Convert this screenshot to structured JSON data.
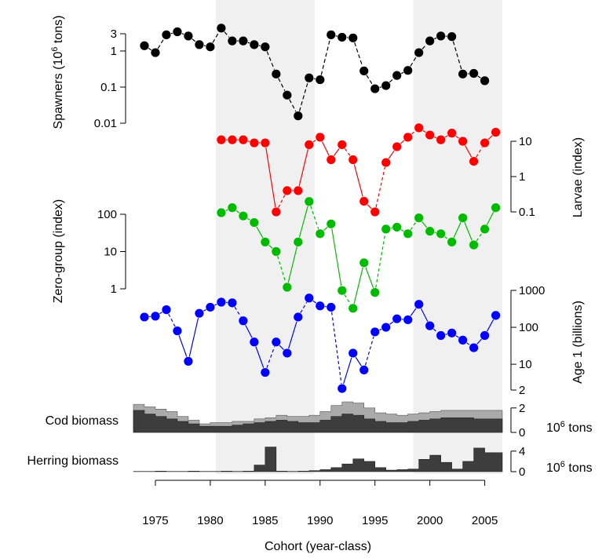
{
  "chart_data": {
    "type": "line",
    "xlabel": "Cohort (year-class)",
    "x_ticks": [
      1975,
      1980,
      1985,
      1990,
      1995,
      2000,
      2005
    ],
    "xlim": [
      1973,
      2006.6
    ],
    "shaded_periods": [
      [
        1980.5,
        1989.5
      ],
      [
        1998.5,
        2006.6
      ]
    ],
    "panels": [
      {
        "id": "spawners",
        "ylabel": "Spawners (10",
        "ylabel_sup": "6",
        "ylabel_tail": " tons)",
        "y_axis_side": "left",
        "y_scale": "log",
        "y_ticks": [
          0.01,
          0.1,
          1,
          3
        ],
        "y_tick_labels": [
          "0.01",
          "0.1",
          "1",
          "3"
        ],
        "color": "#000000",
        "x": [
          1974,
          1975,
          1976,
          1977,
          1978,
          1979,
          1980,
          1981,
          1982,
          1983,
          1984,
          1985,
          1986,
          1987,
          1988,
          1989,
          1990,
          1991,
          1992,
          1993,
          1994,
          1995,
          1996,
          1997,
          1998,
          1999,
          2000,
          2001,
          2002,
          2003,
          2004,
          2005,
          2006
        ],
        "values": [
          1.4,
          0.9,
          2.8,
          3.4,
          2.6,
          1.5,
          1.3,
          4.3,
          1.9,
          1.9,
          1.5,
          1.3,
          0.23,
          0.06,
          0.016,
          0.18,
          0.16,
          2.8,
          2.4,
          2.3,
          0.28,
          0.09,
          0.11,
          0.21,
          0.29,
          0.9,
          1.9,
          2.6,
          2.5,
          0.23,
          0.24,
          0.15,
          null
        ]
      },
      {
        "id": "larvae",
        "ylabel": "Larvae (index)",
        "y_axis_side": "right",
        "y_scale": "log",
        "y_ticks": [
          0.1,
          1,
          10
        ],
        "y_tick_labels": [
          "0.1",
          "1",
          "10"
        ],
        "color": "#ff0000",
        "x": [
          1981,
          1982,
          1983,
          1984,
          1985,
          1986,
          1987,
          1988,
          1989,
          1990,
          1991,
          1992,
          1993,
          1994,
          1995,
          1996,
          1997,
          1998,
          1999,
          2000,
          2001,
          2002,
          2003,
          2004,
          2005,
          2006
        ],
        "values": [
          11,
          11,
          11,
          9,
          9,
          0.1,
          0.4,
          0.4,
          8,
          13,
          3,
          8,
          3,
          0.2,
          0.1,
          2.5,
          7,
          13,
          24,
          15,
          11,
          17,
          10,
          2.7,
          9,
          18
        ]
      },
      {
        "id": "zero-group",
        "ylabel": "Zero-group (index)",
        "y_axis_side": "left",
        "y_scale": "log",
        "y_ticks": [
          1,
          10,
          100
        ],
        "y_tick_labels": [
          "1",
          "10",
          "100"
        ],
        "color": "#00bb00",
        "x": [
          1981,
          1982,
          1983,
          1984,
          1985,
          1986,
          1987,
          1988,
          1989,
          1990,
          1991,
          1992,
          1993,
          1994,
          1995,
          1996,
          1997,
          1998,
          1999,
          2000,
          2001,
          2002,
          2003,
          2004,
          2005,
          2006
        ],
        "values": [
          110,
          150,
          90,
          60,
          18,
          10,
          1.1,
          18,
          220,
          30,
          55,
          0.9,
          0.3,
          5,
          0.8,
          40,
          45,
          30,
          80,
          35,
          30,
          18,
          80,
          15,
          40,
          150
        ]
      },
      {
        "id": "age1",
        "ylabel": "Age 1 (billions)",
        "y_axis_side": "right",
        "y_scale": "log",
        "y_ticks": [
          2,
          10,
          100,
          1000
        ],
        "y_tick_labels": [
          "2",
          "10",
          "100",
          "1000"
        ],
        "color": "#0000ff",
        "x": [
          1974,
          1975,
          1976,
          1977,
          1978,
          1979,
          1980,
          1981,
          1982,
          1983,
          1984,
          1985,
          1986,
          1987,
          1988,
          1989,
          1990,
          1991,
          1992,
          1993,
          1994,
          1995,
          1996,
          1997,
          1998,
          1999,
          2000,
          2001,
          2002,
          2003,
          2004,
          2005,
          2006
        ],
        "values": [
          190,
          200,
          300,
          80,
          12,
          240,
          350,
          480,
          460,
          150,
          40,
          6,
          40,
          20,
          190,
          620,
          380,
          350,
          2.2,
          20,
          7,
          75,
          100,
          170,
          160,
          420,
          110,
          60,
          70,
          45,
          28,
          60,
          210
        ]
      },
      {
        "id": "cod-biomass",
        "label": "Cod biomass",
        "unit_prefix": "10",
        "unit_sup": "6",
        "unit_suffix": " tons",
        "type": "step-area",
        "y_axis_side": "right",
        "y_ticks": [
          0,
          2
        ],
        "y_tick_labels": [
          "0",
          "2"
        ],
        "ylim": [
          0,
          2.5
        ],
        "colors": {
          "total": "#aaaaaa",
          "part": "#3d3d3d"
        },
        "x": [
          1973,
          1974,
          1975,
          1976,
          1977,
          1978,
          1979,
          1980,
          1981,
          1982,
          1983,
          1984,
          1985,
          1986,
          1987,
          1988,
          1989,
          1990,
          1991,
          1992,
          1993,
          1994,
          1995,
          1996,
          1997,
          1998,
          1999,
          2000,
          2001,
          2002,
          2003,
          2004,
          2005,
          2006
        ],
        "total": [
          2.3,
          2.1,
          1.9,
          1.7,
          1.3,
          1.0,
          0.7,
          0.8,
          0.8,
          0.9,
          0.9,
          1.1,
          1.2,
          1.4,
          1.3,
          1.3,
          1.4,
          1.7,
          2.2,
          2.5,
          2.4,
          2.0,
          1.6,
          1.5,
          1.4,
          1.5,
          1.6,
          1.7,
          1.8,
          1.8,
          1.8,
          1.8,
          1.8,
          1.8
        ],
        "part": [
          1.8,
          1.5,
          1.3,
          1.1,
          0.9,
          0.7,
          0.5,
          0.5,
          0.5,
          0.6,
          0.7,
          0.8,
          0.9,
          1.0,
          0.9,
          0.8,
          0.8,
          1.0,
          1.3,
          1.5,
          1.4,
          1.1,
          0.9,
          0.8,
          0.8,
          0.9,
          1.0,
          1.1,
          1.2,
          1.2,
          1.2,
          1.1,
          1.1,
          1.1
        ]
      },
      {
        "id": "herring-biomass",
        "label": "Herring biomass",
        "unit_prefix": "10",
        "unit_sup": "6",
        "unit_suffix": " tons",
        "type": "step-area",
        "y_axis_side": "right",
        "y_ticks": [
          0,
          4
        ],
        "y_tick_labels": [
          "0",
          "4"
        ],
        "ylim": [
          0,
          5.5
        ],
        "colors": {
          "part": "#3d3d3d"
        },
        "x": [
          1973,
          1974,
          1975,
          1976,
          1977,
          1978,
          1979,
          1980,
          1981,
          1982,
          1983,
          1984,
          1985,
          1986,
          1987,
          1988,
          1989,
          1990,
          1991,
          1992,
          1993,
          1994,
          1995,
          1996,
          1997,
          1998,
          1999,
          2000,
          2001,
          2002,
          2003,
          2004,
          2005,
          2006
        ],
        "part": [
          0.05,
          0.05,
          0.1,
          0.05,
          0.05,
          0.1,
          0.05,
          0.05,
          0.1,
          0.05,
          0.1,
          1.3,
          4.8,
          0.1,
          0.05,
          0.1,
          0.2,
          0.4,
          0.8,
          1.5,
          2.5,
          2.0,
          0.8,
          0.3,
          0.4,
          0.5,
          2.4,
          3.2,
          1.8,
          0.5,
          2.0,
          4.6,
          3.7,
          3.7
        ]
      }
    ]
  }
}
